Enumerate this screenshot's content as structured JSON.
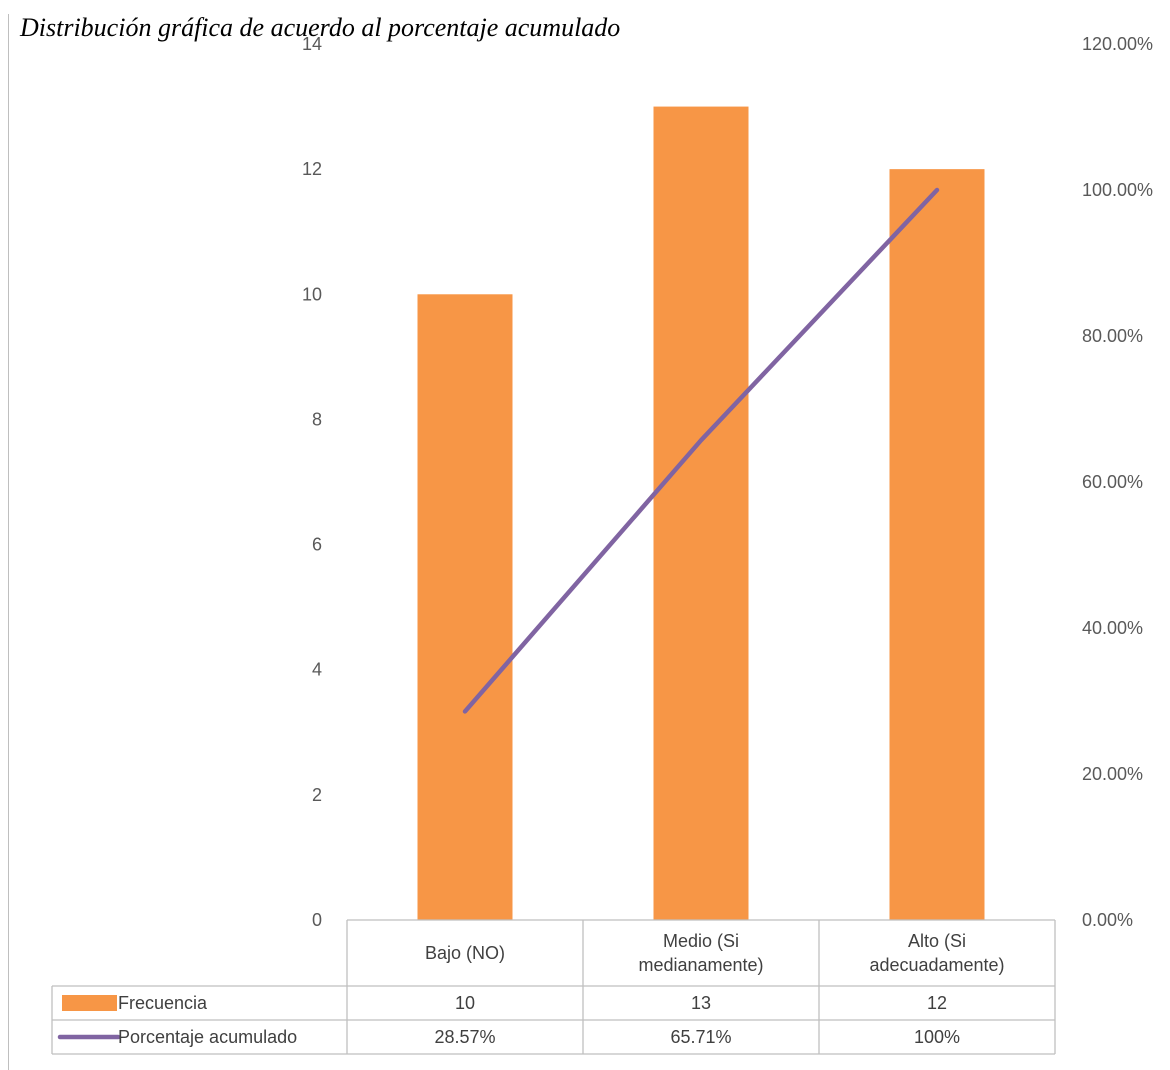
{
  "chart_data": {
    "type": "bar",
    "title": "Distribución gráfica de acuerdo al porcentaje acumulado",
    "categories": [
      "Bajo (NO)",
      "Medio (Si medianamente)",
      "Alto (Si adecuadamente)"
    ],
    "category_lines": [
      [
        "Bajo (NO)"
      ],
      [
        "Medio (Si",
        "medianamente)"
      ],
      [
        "Alto (Si",
        "adecuadamente)"
      ]
    ],
    "series": [
      {
        "name": "Frecuencia",
        "type": "bar",
        "axis": "left",
        "color": "#f79646",
        "values": [
          10,
          13,
          12
        ],
        "table_values": [
          "10",
          "13",
          "12"
        ]
      },
      {
        "name": "Porcentaje acumulado",
        "type": "line",
        "axis": "right",
        "color": "#8064a2",
        "values": [
          0.2857,
          0.6571,
          1.0
        ],
        "table_values": [
          "28.57%",
          "65.71%",
          "100%"
        ]
      }
    ],
    "y_left": {
      "min": 0,
      "max": 14,
      "ticks": [
        0,
        2,
        4,
        6,
        8,
        10,
        12,
        14
      ],
      "tick_labels": [
        "0",
        "2",
        "4",
        "6",
        "8",
        "10",
        "12",
        "14"
      ]
    },
    "y_right": {
      "min": 0,
      "max": 1.2,
      "ticks": [
        0,
        0.2,
        0.4,
        0.6,
        0.8,
        1.0,
        1.2
      ],
      "tick_labels": [
        "0.00%",
        "20.00%",
        "40.00%",
        "60.00%",
        "80.00%",
        "100.00%",
        "120.00%"
      ]
    },
    "grid": false,
    "legend": "data-table"
  }
}
